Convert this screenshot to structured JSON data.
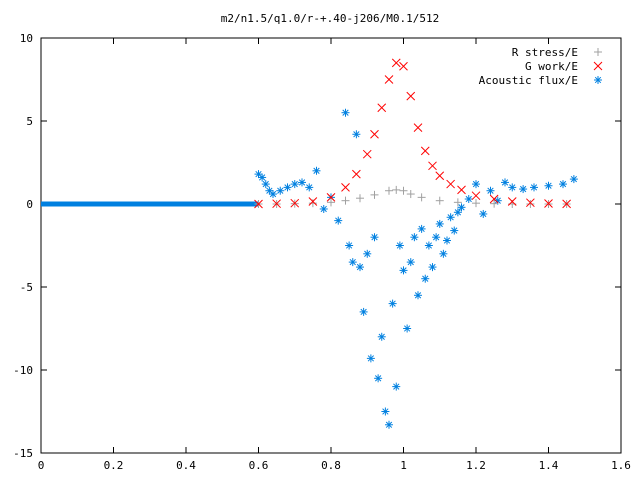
{
  "chart_data": {
    "type": "scatter",
    "title": "m2/n1.5/q1.0/r-+.40-j206/M0.1/512",
    "xlabel": "",
    "ylabel": "",
    "xlim": [
      0,
      1.6
    ],
    "ylim": [
      -15,
      10
    ],
    "x_ticks": [
      "0",
      "0.2",
      "0.4",
      "0.6",
      "0.8",
      "1",
      "1.2",
      "1.4",
      "1.6"
    ],
    "y_ticks": [
      "10",
      "5",
      "0",
      "-5",
      "-10",
      "-15"
    ],
    "grid": false,
    "legend_position": "top-right",
    "series": [
      {
        "name": "R stress/E",
        "marker": "plus",
        "color": "#a0a0a0",
        "x": [
          0.6,
          0.65,
          0.7,
          0.75,
          0.8,
          0.84,
          0.88,
          0.92,
          0.96,
          0.98,
          1.0,
          1.02,
          1.05,
          1.1,
          1.15,
          1.2,
          1.25,
          1.3,
          1.35,
          1.4,
          1.45
        ],
        "y": [
          0.0,
          0.0,
          0.02,
          0.05,
          0.1,
          0.2,
          0.35,
          0.55,
          0.8,
          0.85,
          0.8,
          0.6,
          0.4,
          0.2,
          0.1,
          0.05,
          0.02,
          0.0,
          0.0,
          0.0,
          0.0
        ]
      },
      {
        "name": "G work/E",
        "marker": "cross",
        "color": "#ff0000",
        "x": [
          0.6,
          0.65,
          0.7,
          0.75,
          0.8,
          0.84,
          0.87,
          0.9,
          0.92,
          0.94,
          0.96,
          0.98,
          1.0,
          1.02,
          1.04,
          1.06,
          1.08,
          1.1,
          1.13,
          1.16,
          1.2,
          1.25,
          1.3,
          1.35,
          1.4,
          1.45
        ],
        "y": [
          0.0,
          0.02,
          0.05,
          0.15,
          0.4,
          1.0,
          1.8,
          3.0,
          4.2,
          5.8,
          7.5,
          8.5,
          8.3,
          6.5,
          4.6,
          3.2,
          2.3,
          1.7,
          1.2,
          0.85,
          0.5,
          0.3,
          0.15,
          0.08,
          0.03,
          0.01
        ]
      },
      {
        "name": "Acoustic flux/E",
        "marker": "star",
        "color": "#0080e0",
        "x": [
          0.6,
          0.61,
          0.62,
          0.63,
          0.64,
          0.66,
          0.68,
          0.7,
          0.72,
          0.74,
          0.76,
          0.78,
          0.8,
          0.82,
          0.84,
          0.85,
          0.86,
          0.87,
          0.88,
          0.89,
          0.9,
          0.91,
          0.92,
          0.93,
          0.94,
          0.95,
          0.96,
          0.97,
          0.98,
          0.99,
          1.0,
          1.01,
          1.02,
          1.03,
          1.04,
          1.05,
          1.06,
          1.07,
          1.08,
          1.09,
          1.1,
          1.11,
          1.12,
          1.13,
          1.14,
          1.15,
          1.16,
          1.18,
          1.2,
          1.22,
          1.24,
          1.26,
          1.28,
          1.3,
          1.33,
          1.36,
          1.4,
          1.44,
          1.47
        ],
        "y": [
          1.8,
          1.6,
          1.2,
          0.8,
          0.6,
          0.8,
          1.0,
          1.2,
          1.3,
          1.0,
          2.0,
          -0.3,
          0.4,
          -1.0,
          5.5,
          -2.5,
          -3.5,
          4.2,
          -3.8,
          -6.5,
          -3.0,
          -9.3,
          -2.0,
          -10.5,
          -8.0,
          -12.5,
          -13.3,
          -6.0,
          -11.0,
          -2.5,
          -4.0,
          -7.5,
          -3.5,
          -2.0,
          -5.5,
          -1.5,
          -4.5,
          -2.5,
          -3.8,
          -2.0,
          -1.2,
          -3.0,
          -2.2,
          -0.8,
          -1.6,
          -0.5,
          -0.2,
          0.3,
          1.2,
          -0.6,
          0.8,
          0.2,
          1.3,
          1.0,
          0.9,
          1.0,
          1.1,
          1.2,
          1.5
        ]
      }
    ],
    "background_series": {
      "name": "Acoustic flux/E",
      "x_range": [
        0,
        0.6
      ],
      "y": 0,
      "color": "#0080e0"
    }
  }
}
